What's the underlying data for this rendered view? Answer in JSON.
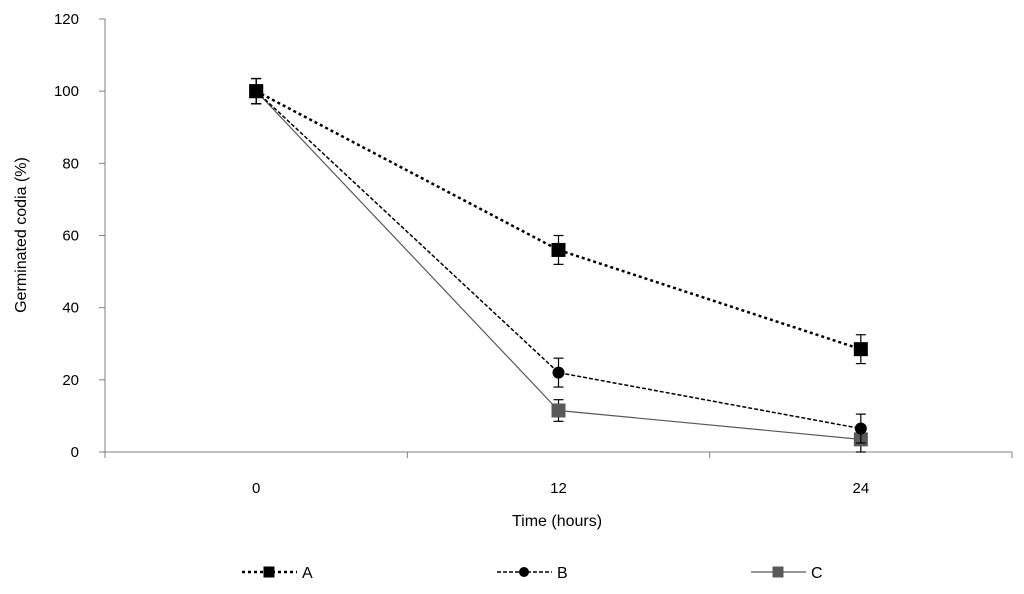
{
  "chart_data": {
    "type": "line",
    "title": "",
    "xlabel": "Time (hours)",
    "ylabel": "Germinated codia (%)",
    "categories": [
      "0",
      "12",
      "24"
    ],
    "ylim": [
      0,
      120
    ],
    "yticks": [
      0,
      20,
      40,
      60,
      80,
      100,
      120
    ],
    "grid": false,
    "legend_position": "bottom",
    "series": [
      {
        "name": "A",
        "values": [
          100,
          56,
          28.5
        ],
        "errors": [
          3.5,
          4,
          4
        ],
        "line_style": "dotted",
        "marker": "square",
        "color": "#000000"
      },
      {
        "name": "B",
        "values": [
          100,
          22,
          6.5
        ],
        "errors": [
          3.5,
          4,
          4
        ],
        "line_style": "dashed",
        "marker": "circle",
        "color": "#000000"
      },
      {
        "name": "C",
        "values": [
          100,
          11.5,
          3.5
        ],
        "errors": [
          3.5,
          3,
          3.5
        ],
        "line_style": "solid",
        "marker": "square",
        "color": "#595959"
      }
    ]
  }
}
